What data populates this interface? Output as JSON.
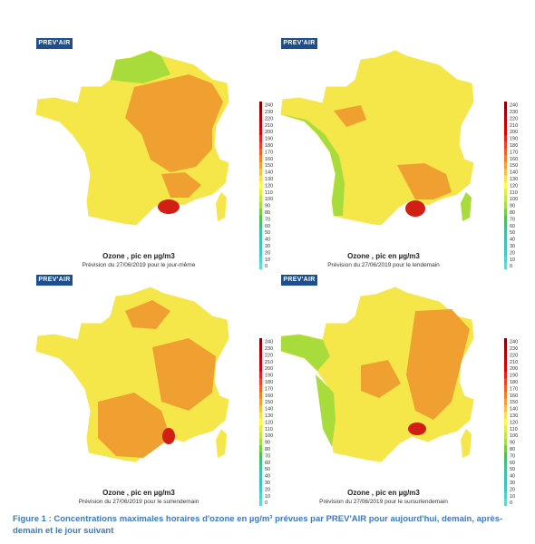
{
  "logo_text": "PREV'AIR",
  "panels": [
    {
      "title": "Ozone , pic en µg/m3",
      "subtitle": "Prévision du 27/06/2019 pour le jour-même",
      "hotspot": "se",
      "corsica": "yellow"
    },
    {
      "title": "Ozone , pic en µg/m3",
      "subtitle": "Prévision du 27/06/2019 pour le lendemain",
      "hotspot": "se",
      "corsica": "green"
    },
    {
      "title": "Ozone , pic en µg/m3",
      "subtitle": "Prévision du 27/06/2019 pour le surlendemain",
      "hotspot": "se-small",
      "corsica": "yellow"
    },
    {
      "title": "Ozone , pic en µg/m3",
      "subtitle": "Prévision du 27/06/2019 pour le sursurlendemain",
      "hotspot": "se-small",
      "corsica": "yellow"
    }
  ],
  "scale": {
    "values": [
      "240",
      "230",
      "220",
      "210",
      "200",
      "190",
      "180",
      "170",
      "160",
      "150",
      "140",
      "130",
      "120",
      "110",
      "100",
      "90",
      "80",
      "70",
      "60",
      "50",
      "40",
      "30",
      "20",
      "10",
      "0"
    ],
    "colors": [
      "#8b0000",
      "#a00000",
      "#b40000",
      "#c80000",
      "#dc0000",
      "#e62020",
      "#f04020",
      "#f06020",
      "#f08020",
      "#f4a030",
      "#f8c040",
      "#fde050",
      "#ffff40",
      "#e0f040",
      "#c0e840",
      "#a0e040",
      "#70d040",
      "#50c050",
      "#40c080",
      "#40c0a0",
      "#40c0b0",
      "#40c0c0",
      "#40c8c8",
      "#50d0d0",
      "#60d8d8"
    ]
  },
  "caption": "Figure 1 : Concentrations maximales horaires d'ozone en µg/m³ prévues par PREV'AIR pour aujourd'hui, demain, après-demain et le jour suivant",
  "colors": {
    "orange": "#f0a030",
    "yellow": "#f5e64a",
    "green": "#a8dc3c",
    "red": "#d21e14",
    "caption_blue": "#3a7bbf"
  }
}
